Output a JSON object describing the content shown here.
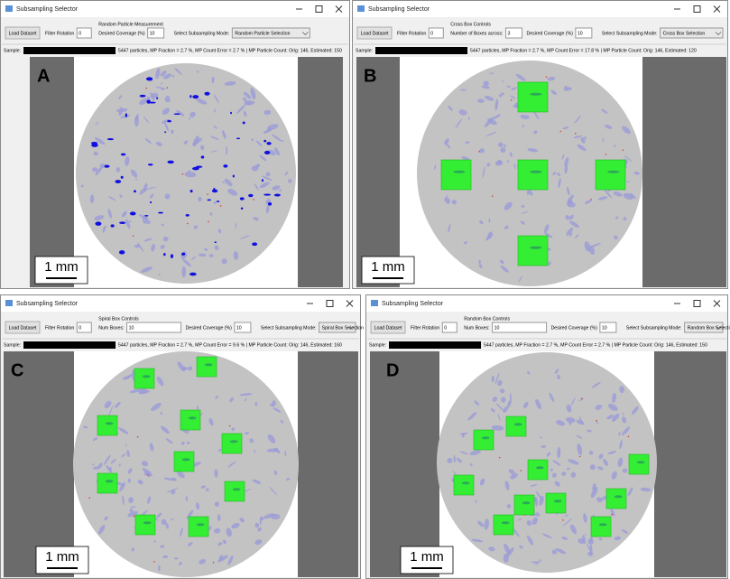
{
  "panels": [
    {
      "label": "A",
      "window_title": "Subsampling Selector",
      "load_button": "Load Dataset",
      "filter_rotation_label": "Filter Rotation",
      "filter_rotation_value": "0",
      "controls_title": "Random Particle Measurement",
      "controls": [
        {
          "label": "Desired Coverage (%)",
          "value": "10"
        }
      ],
      "mode_label": "Select Subsampling Mode:",
      "mode": "Random Particle Selection",
      "sample_label": "Sample:",
      "status": "5447 particles, MP Fraction = 2.7 %, MP Count Error = 2.7 % | MP Particle Count: Orig: 146, Estimated: 150",
      "scale_bar": "1 mm"
    },
    {
      "label": "B",
      "window_title": "Subsampling Selector",
      "load_button": "Load Dataset",
      "filter_rotation_label": "Filter Rotation",
      "filter_rotation_value": "0",
      "controls_title": "Cross Box Controls",
      "controls": [
        {
          "label": "Number of Boxes across:",
          "value": "3"
        },
        {
          "label": "Desired Coverage (%)",
          "value": "10"
        }
      ],
      "mode_label": "Select Subsampling Mode:",
      "mode": "Cross Box Selection",
      "sample_label": "Sample:",
      "status": "5447 particles, MP Fraction = 2.7 %, MP Count Error = 17.8 % | MP Particle Count: Orig: 146, Estimated: 120",
      "scale_bar": "1 mm"
    },
    {
      "label": "C",
      "window_title": "Subsampling Selector",
      "load_button": "Load Dataset",
      "filter_rotation_label": "Filter Rotation",
      "filter_rotation_value": "0",
      "controls_title": "Spiral Box Controls",
      "controls": [
        {
          "label": "Num Boxes:",
          "value": "10"
        },
        {
          "label": "Desired Coverage (%)",
          "value": "10"
        }
      ],
      "mode_label": "Select Subsampling Mode:",
      "mode": "Spiral Box Selection",
      "sample_label": "Sample:",
      "status": "5447 particles, MP Fraction = 2.7 %, MP Count Error = 9.6 % | MP Particle Count: Orig: 146, Estimated: 160",
      "scale_bar": "1 mm"
    },
    {
      "label": "D",
      "window_title": "Subsampling Selector",
      "load_button": "Load Dataset",
      "filter_rotation_label": "Filter Rotation",
      "filter_rotation_value": "0",
      "controls_title": "Random Box Controls",
      "controls": [
        {
          "label": "Num Boxes:",
          "value": "10"
        },
        {
          "label": "Desired Coverage (%)",
          "value": "10"
        }
      ],
      "mode_label": "Select Subsampling Mode:",
      "mode": "Random Box Selection",
      "sample_label": "Sample:",
      "status": "5447 particles, MP Fraction = 2.7 %, MP Count Error = 2.7 % | MP Particle Count: Orig: 146, Estimated: 150",
      "scale_bar": "1 mm"
    }
  ]
}
